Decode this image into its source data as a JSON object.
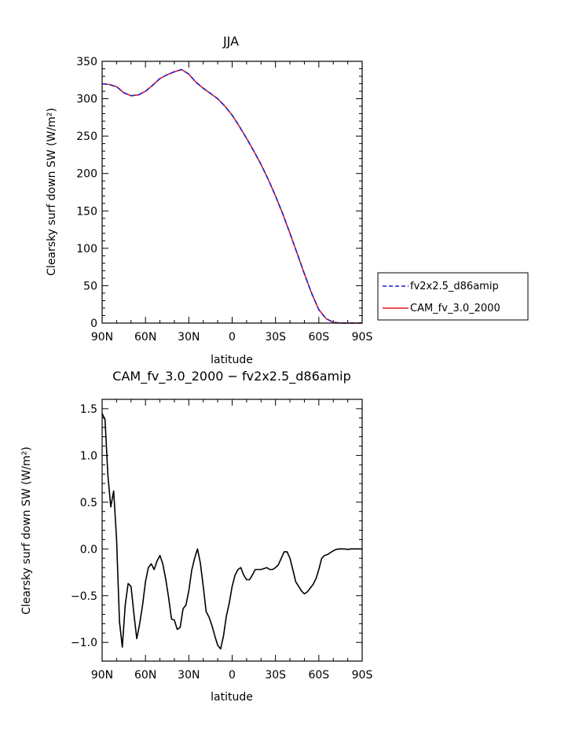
{
  "chart_data": [
    {
      "type": "line",
      "title": "JJA",
      "xlabel": "latitude",
      "ylabel": "Clearsky surf down SW (W/m²)",
      "xlim": [
        90,
        -90
      ],
      "ylim": [
        0,
        350
      ],
      "x_ticks": [
        90,
        60,
        30,
        0,
        -30,
        -60,
        -90
      ],
      "x_tick_labels": [
        "90N",
        "60N",
        "30N",
        "0",
        "30S",
        "60S",
        "90S"
      ],
      "y_ticks": [
        0,
        50,
        100,
        150,
        200,
        250,
        300,
        350
      ],
      "y_tick_labels": [
        "0",
        "50",
        "100",
        "150",
        "200",
        "250",
        "300",
        "350"
      ],
      "grid": false,
      "legend_position": "right",
      "x": [
        90,
        85,
        80,
        75,
        70,
        65,
        60,
        55,
        50,
        45,
        40,
        35,
        30,
        25,
        20,
        15,
        10,
        5,
        0,
        -5,
        -10,
        -15,
        -20,
        -25,
        -30,
        -35,
        -40,
        -45,
        -50,
        -55,
        -60,
        -65,
        -70,
        -75,
        -80,
        -85,
        -90
      ],
      "series": [
        {
          "name": "fv2x2.5_d86amip",
          "color": "#1f1fd6",
          "dash": "dashed",
          "values": [
            320,
            319,
            316,
            308,
            304,
            305,
            310,
            318,
            327,
            332,
            336,
            339,
            333,
            322,
            314,
            307,
            300,
            290,
            278,
            263,
            247,
            230,
            212,
            192,
            170,
            146,
            120,
            93,
            66,
            40,
            18,
            6,
            1,
            0,
            0,
            0,
            0
          ]
        },
        {
          "name": "CAM_fv_3.0_2000",
          "color": "#e01b1b",
          "dash": "solid",
          "values": [
            320,
            319,
            316,
            308,
            304,
            305,
            310,
            318,
            327,
            332,
            336,
            339,
            333,
            322,
            314,
            307,
            300,
            290,
            278,
            263,
            247,
            230,
            212,
            192,
            170,
            146,
            120,
            93,
            66,
            40,
            18,
            6,
            1,
            0,
            0,
            0,
            0
          ]
        }
      ]
    },
    {
      "type": "line",
      "title": "CAM_fv_3.0_2000 − fv2x2.5_d86amip",
      "xlabel": "latitude",
      "ylabel": "Clearsky surf down SW (W/m²)",
      "xlim": [
        90,
        -90
      ],
      "ylim": [
        -1.2,
        1.6
      ],
      "x_ticks": [
        90,
        60,
        30,
        0,
        -30,
        -60,
        -90
      ],
      "x_tick_labels": [
        "90N",
        "60N",
        "30N",
        "0",
        "30S",
        "60S",
        "90S"
      ],
      "y_ticks": [
        -1.0,
        -0.5,
        0.0,
        0.5,
        1.0,
        1.5
      ],
      "y_tick_labels": [
        "−1.0",
        "−0.5",
        "0.0",
        "0.5",
        "1.0",
        "1.5"
      ],
      "grid": false,
      "series": [
        {
          "color": "#000000",
          "x": [
            90,
            88,
            86,
            84,
            82,
            80,
            78,
            76,
            74,
            72,
            70,
            68,
            66,
            64,
            62,
            60,
            58,
            56,
            54,
            52,
            50,
            48,
            46,
            44,
            42,
            40,
            38,
            36,
            34,
            32,
            30,
            28,
            26,
            24,
            22,
            20,
            18,
            16,
            14,
            12,
            10,
            8,
            6,
            4,
            2,
            0,
            -2,
            -4,
            -6,
            -8,
            -10,
            -12,
            -14,
            -16,
            -18,
            -20,
            -22,
            -24,
            -26,
            -28,
            -30,
            -32,
            -34,
            -36,
            -38,
            -40,
            -42,
            -44,
            -46,
            -48,
            -50,
            -52,
            -54,
            -56,
            -58,
            -60,
            -62,
            -64,
            -66,
            -68,
            -70,
            -72,
            -74,
            -76,
            -78,
            -80,
            -82,
            -84,
            -86,
            -88,
            -90
          ],
          "values": [
            1.45,
            1.38,
            0.78,
            0.45,
            0.62,
            0.1,
            -0.78,
            -1.05,
            -0.6,
            -0.37,
            -0.4,
            -0.7,
            -0.96,
            -0.8,
            -0.6,
            -0.35,
            -0.2,
            -0.16,
            -0.22,
            -0.13,
            -0.07,
            -0.16,
            -0.32,
            -0.52,
            -0.75,
            -0.76,
            -0.86,
            -0.84,
            -0.64,
            -0.6,
            -0.45,
            -0.23,
            -0.1,
            0.0,
            -0.15,
            -0.4,
            -0.67,
            -0.73,
            -0.82,
            -0.93,
            -1.03,
            -1.07,
            -0.93,
            -0.72,
            -0.58,
            -0.4,
            -0.28,
            -0.22,
            -0.2,
            -0.28,
            -0.33,
            -0.33,
            -0.28,
            -0.22,
            -0.22,
            -0.22,
            -0.21,
            -0.2,
            -0.22,
            -0.22,
            -0.2,
            -0.17,
            -0.1,
            -0.03,
            -0.03,
            -0.1,
            -0.22,
            -0.35,
            -0.4,
            -0.45,
            -0.48,
            -0.46,
            -0.42,
            -0.38,
            -0.32,
            -0.22,
            -0.1,
            -0.07,
            -0.06,
            -0.04,
            -0.02,
            -0.005,
            0.0,
            0.0,
            0.0,
            -0.005,
            0.0,
            0.0,
            0.0,
            0.0,
            0.0
          ]
        }
      ]
    }
  ]
}
